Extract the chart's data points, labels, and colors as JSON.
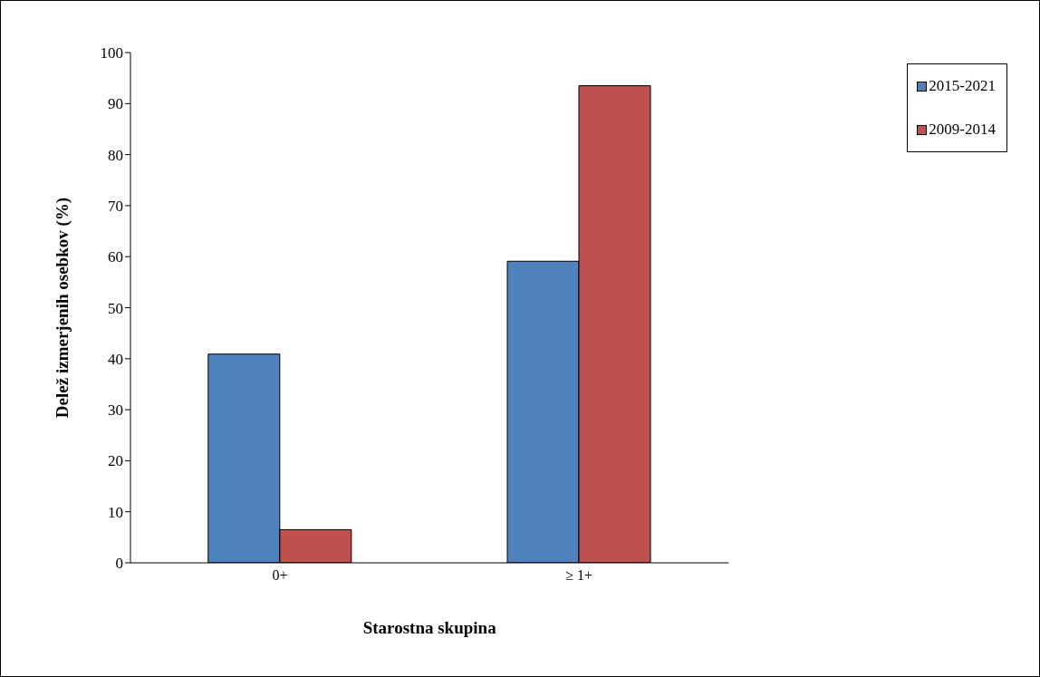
{
  "chart_data": {
    "type": "bar",
    "xlabel": "Starostna skupina",
    "ylabel": "Delež izmerjenih osebkov (%)",
    "categories": [
      "0+",
      "≥ 1+"
    ],
    "series": [
      {
        "name": "2015-2021",
        "color": "#4f81bd",
        "values": [
          40.9,
          59.1
        ]
      },
      {
        "name": "2009-2014",
        "color": "#c0504d",
        "values": [
          6.5,
          93.5
        ]
      }
    ],
    "ylim": [
      0,
      100
    ],
    "yticks": [
      0,
      10,
      20,
      30,
      40,
      50,
      60,
      70,
      80,
      90,
      100
    ],
    "grid": false,
    "legend": "top right"
  }
}
